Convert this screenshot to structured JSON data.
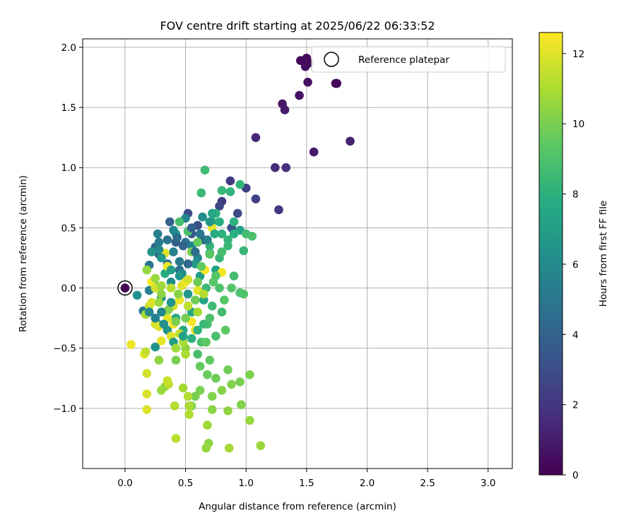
{
  "chart_data": {
    "type": "scatter",
    "title": "FOV centre drift starting at 2025/06/22 06:33:52",
    "xlabel": "Angular distance from reference (arcmin)",
    "ylabel": "Rotation from reference (arcmin)",
    "xlim": [
      -0.35,
      3.2
    ],
    "ylim": [
      -1.5,
      2.07
    ],
    "xticks": [
      0.0,
      0.5,
      1.0,
      1.5,
      2.0,
      2.5,
      3.0
    ],
    "xtick_labels": [
      "0.0",
      "0.5",
      "1.0",
      "1.5",
      "2.0",
      "2.5",
      "3.0"
    ],
    "yticks": [
      -1.0,
      -0.5,
      0.0,
      0.5,
      1.0,
      1.5,
      2.0
    ],
    "ytick_labels": [
      "−1.0",
      "−0.5",
      "0.0",
      "0.5",
      "1.0",
      "1.5",
      "2.0"
    ],
    "grid": true,
    "legend": {
      "position": "top-right",
      "entries": [
        "Reference platepar"
      ]
    },
    "reference_point": {
      "x": 0.0,
      "y": 0.0
    },
    "colorbar": {
      "label": "Hours from first FF file",
      "colormap": "viridis",
      "range": [
        0,
        12.6
      ],
      "ticks": [
        0,
        2,
        4,
        6,
        8,
        10,
        12
      ],
      "tick_labels": [
        "0",
        "2",
        "4",
        "6",
        "8",
        "10",
        "12"
      ]
    },
    "series": [
      {
        "values": [
          [
            0.0,
            0.0,
            0.05
          ],
          [
            1.45,
            1.89,
            0.3
          ],
          [
            1.5,
            1.91,
            0.4
          ],
          [
            1.49,
            1.84,
            0.5
          ],
          [
            1.52,
            1.87,
            0.45
          ],
          [
            1.74,
            1.7,
            0.3
          ],
          [
            1.75,
            1.7,
            0.2
          ],
          [
            1.51,
            1.71,
            0.6
          ],
          [
            1.44,
            1.6,
            0.7
          ],
          [
            1.3,
            1.53,
            0.8
          ],
          [
            1.32,
            1.48,
            0.9
          ],
          [
            1.56,
            1.13,
            1.0
          ],
          [
            1.86,
            1.22,
            1.2
          ],
          [
            1.08,
            1.25,
            1.4
          ],
          [
            1.24,
            1.0,
            1.6
          ],
          [
            1.33,
            1.0,
            1.8
          ],
          [
            1.27,
            0.65,
            2.0
          ],
          [
            0.87,
            0.89,
            2.2
          ],
          [
            1.0,
            0.83,
            2.4
          ],
          [
            1.08,
            0.74,
            2.5
          ],
          [
            0.8,
            0.72,
            2.3
          ],
          [
            0.78,
            0.68,
            2.6
          ],
          [
            0.93,
            0.62,
            2.8
          ],
          [
            0.52,
            0.62,
            3.0
          ],
          [
            0.6,
            0.52,
            3.1
          ],
          [
            0.88,
            0.5,
            3.3
          ],
          [
            0.55,
            0.45,
            3.5
          ],
          [
            0.65,
            0.4,
            3.6
          ],
          [
            0.42,
            0.38,
            3.8
          ],
          [
            0.37,
            0.55,
            4.0
          ],
          [
            0.25,
            0.34,
            4.2
          ],
          [
            0.28,
            0.28,
            4.4
          ],
          [
            0.35,
            0.2,
            4.5
          ],
          [
            0.45,
            0.15,
            4.7
          ],
          [
            0.2,
            0.19,
            4.9
          ],
          [
            0.23,
            0.05,
            5.0
          ],
          [
            0.15,
            -0.19,
            5.2
          ],
          [
            0.2,
            -0.02,
            5.4
          ],
          [
            0.27,
            0.45,
            5.5
          ],
          [
            0.4,
            0.3,
            5.6
          ],
          [
            0.5,
            0.58,
            5.7
          ],
          [
            0.55,
            0.35,
            5.8
          ],
          [
            0.6,
            0.25,
            5.9
          ],
          [
            0.47,
            0.12,
            6.0
          ],
          [
            0.38,
            0.05,
            6.1
          ],
          [
            0.3,
            -0.08,
            6.2
          ],
          [
            0.1,
            -0.06,
            6.3
          ],
          [
            0.27,
            -0.3,
            6.4
          ],
          [
            0.25,
            -0.49,
            6.5
          ],
          [
            0.35,
            -0.35,
            6.6
          ],
          [
            0.45,
            0.1,
            6.7
          ],
          [
            0.52,
            -0.05,
            6.8
          ],
          [
            0.58,
            0.2,
            6.9
          ],
          [
            0.62,
            0.1,
            7.0
          ],
          [
            0.7,
            0.29,
            7.1
          ],
          [
            0.95,
            0.48,
            7.2
          ],
          [
            0.75,
            0.15,
            7.3
          ],
          [
            0.65,
            -0.1,
            7.4
          ],
          [
            0.55,
            -0.2,
            7.5
          ],
          [
            0.42,
            -0.25,
            7.6
          ],
          [
            0.48,
            -0.35,
            7.7
          ],
          [
            0.33,
            0.12,
            7.8
          ],
          [
            0.72,
            0.55,
            7.9
          ],
          [
            0.75,
            0.62,
            8.0
          ],
          [
            0.8,
            0.45,
            8.1
          ],
          [
            0.85,
            0.4,
            8.2
          ],
          [
            0.7,
            0.35,
            8.3
          ],
          [
            0.78,
            0.25,
            8.4
          ],
          [
            0.67,
            0.0,
            8.5
          ],
          [
            0.72,
            -0.15,
            8.6
          ],
          [
            0.8,
            -0.2,
            8.7
          ],
          [
            0.68,
            -0.3,
            8.8
          ],
          [
            0.75,
            -0.4,
            8.9
          ],
          [
            0.63,
            -0.45,
            9.0
          ],
          [
            0.6,
            -0.55,
            8.8
          ],
          [
            0.66,
            0.98,
            8.6
          ],
          [
            0.63,
            0.79,
            8.5
          ],
          [
            0.8,
            0.81,
            8.4
          ],
          [
            0.95,
            0.86,
            8.3
          ],
          [
            0.87,
            0.8,
            8.2
          ],
          [
            0.9,
            0.55,
            8.1
          ],
          [
            0.85,
            0.35,
            8.5
          ],
          [
            0.9,
            0.1,
            8.7
          ],
          [
            0.95,
            -0.04,
            9.0
          ],
          [
            0.98,
            -0.05,
            9.1
          ],
          [
            0.88,
            0.0,
            9.2
          ],
          [
            0.82,
            -0.1,
            9.3
          ],
          [
            0.83,
            -0.35,
            9.4
          ],
          [
            0.7,
            -0.6,
            9.5
          ],
          [
            0.62,
            -0.65,
            9.6
          ],
          [
            0.68,
            -0.72,
            9.7
          ],
          [
            0.75,
            -0.75,
            9.8
          ],
          [
            0.85,
            -0.68,
            9.9
          ],
          [
            0.95,
            -0.78,
            10.0
          ],
          [
            1.03,
            -0.72,
            10.1
          ],
          [
            0.72,
            -0.9,
            10.2
          ],
          [
            0.8,
            -0.85,
            10.3
          ],
          [
            0.88,
            -0.8,
            10.2
          ],
          [
            0.62,
            -0.85,
            10.1
          ],
          [
            0.58,
            -0.9,
            10.0
          ],
          [
            0.55,
            -0.98,
            10.3
          ],
          [
            0.72,
            -1.01,
            10.4
          ],
          [
            0.85,
            -1.02,
            10.5
          ],
          [
            0.96,
            -0.97,
            10.2
          ],
          [
            1.03,
            -1.1,
            10.6
          ],
          [
            1.12,
            -1.31,
            10.7
          ],
          [
            0.68,
            -1.14,
            10.8
          ],
          [
            0.69,
            -1.29,
            10.4
          ],
          [
            0.67,
            -1.33,
            10.6
          ],
          [
            0.86,
            -1.33,
            10.9
          ],
          [
            0.53,
            -0.98,
            11.0
          ],
          [
            0.53,
            -1.05,
            11.1
          ],
          [
            0.41,
            -0.98,
            11.2
          ],
          [
            0.42,
            -1.25,
            11.3
          ],
          [
            0.33,
            -0.82,
            10.5
          ],
          [
            0.3,
            -0.85,
            10.7
          ],
          [
            0.48,
            -0.83,
            10.9
          ],
          [
            0.36,
            -0.8,
            11.4
          ],
          [
            0.35,
            -0.77,
            11.6
          ],
          [
            0.52,
            -0.9,
            11.2
          ],
          [
            0.18,
            -0.71,
            11.8
          ],
          [
            0.18,
            -0.88,
            11.9
          ],
          [
            0.18,
            -1.01,
            12.0
          ],
          [
            0.16,
            -0.55,
            12.1
          ],
          [
            0.05,
            -0.47,
            12.3
          ],
          [
            0.17,
            -0.53,
            11.5
          ],
          [
            0.28,
            -0.6,
            10.5
          ],
          [
            0.42,
            -0.6,
            10.0
          ],
          [
            0.5,
            -0.5,
            10.4
          ],
          [
            0.48,
            -0.45,
            11.0
          ],
          [
            0.45,
            -0.38,
            11.5
          ],
          [
            0.38,
            -0.4,
            12.0
          ],
          [
            0.3,
            -0.44,
            12.2
          ],
          [
            0.4,
            -0.3,
            12.4
          ],
          [
            0.35,
            -0.25,
            12.1
          ],
          [
            0.25,
            -0.3,
            11.8
          ],
          [
            0.28,
            -0.32,
            12.0
          ],
          [
            0.32,
            -0.2,
            11.6
          ],
          [
            0.2,
            -0.15,
            11.5
          ],
          [
            0.17,
            -0.22,
            11.0
          ],
          [
            0.22,
            -0.12,
            12.0
          ],
          [
            0.4,
            -0.15,
            11.9
          ],
          [
            0.45,
            -0.1,
            12.2
          ],
          [
            0.52,
            -0.15,
            11.4
          ],
          [
            0.55,
            -0.28,
            12.5
          ],
          [
            0.6,
            -0.2,
            11.0
          ],
          [
            0.58,
            -0.35,
            12.3
          ],
          [
            0.47,
            0.02,
            12.0
          ],
          [
            0.5,
            0.05,
            12.4
          ],
          [
            0.52,
            0.07,
            11.8
          ],
          [
            0.6,
            -0.02,
            12.1
          ],
          [
            0.65,
            -0.05,
            11.2
          ],
          [
            0.66,
            0.15,
            12.6
          ],
          [
            0.72,
            0.5,
            12.2
          ],
          [
            0.8,
            0.13,
            12.4
          ],
          [
            0.35,
            0.18,
            12.3
          ],
          [
            0.33,
            0.29,
            12.0
          ],
          [
            0.22,
            0.05,
            12.5
          ],
          [
            0.25,
            0.0,
            11.7
          ],
          [
            0.38,
            0.0,
            11.3
          ],
          [
            0.3,
            0.02,
            10.8
          ],
          [
            0.18,
            0.15,
            10.6
          ],
          [
            0.44,
            -0.05,
            10.3
          ],
          [
            0.55,
            0.3,
            10.0
          ],
          [
            0.6,
            0.38,
            9.6
          ],
          [
            0.7,
            0.28,
            9.4
          ],
          [
            0.75,
            0.1,
            9.2
          ],
          [
            0.52,
            0.47,
            9.0
          ],
          [
            0.45,
            0.55,
            8.9
          ],
          [
            0.42,
            0.45,
            7.0
          ],
          [
            0.38,
            0.15,
            7.2
          ],
          [
            0.3,
            0.25,
            6.8
          ],
          [
            0.22,
            0.3,
            6.5
          ],
          [
            0.28,
            0.32,
            6.0
          ],
          [
            0.45,
            0.22,
            5.2
          ],
          [
            0.5,
            0.38,
            4.8
          ],
          [
            0.52,
            0.2,
            4.3
          ],
          [
            0.58,
            0.3,
            4.6
          ],
          [
            0.62,
            0.45,
            5.0
          ],
          [
            0.68,
            0.4,
            5.5
          ],
          [
            0.55,
            0.5,
            3.9
          ],
          [
            0.48,
            0.35,
            4.1
          ],
          [
            0.43,
            0.42,
            4.4
          ],
          [
            0.35,
            0.4,
            4.9
          ],
          [
            0.28,
            0.38,
            5.3
          ],
          [
            0.4,
            0.48,
            5.8
          ],
          [
            0.64,
            0.59,
            6.2
          ],
          [
            0.7,
            0.55,
            6.6
          ],
          [
            0.72,
            0.62,
            7.5
          ],
          [
            0.74,
            0.45,
            7.7
          ],
          [
            0.78,
            0.55,
            7.9
          ],
          [
            0.9,
            0.45,
            8.0
          ],
          [
            0.98,
            0.31,
            8.4
          ],
          [
            1.0,
            0.45,
            8.7
          ],
          [
            1.05,
            0.43,
            8.9
          ],
          [
            0.8,
            0.3,
            8.8
          ],
          [
            0.78,
            0.0,
            9.0
          ],
          [
            0.73,
            0.05,
            9.3
          ],
          [
            0.63,
            0.18,
            9.5
          ],
          [
            0.6,
            0.05,
            9.8
          ],
          [
            0.58,
            -0.1,
            9.9
          ],
          [
            0.5,
            -0.25,
            10.0
          ],
          [
            0.42,
            -0.28,
            10.1
          ],
          [
            0.36,
            -0.18,
            10.2
          ],
          [
            0.3,
            -0.05,
            10.4
          ],
          [
            0.25,
            0.08,
            10.6
          ],
          [
            0.28,
            -0.12,
            10.7
          ],
          [
            0.38,
            -0.12,
            6.5
          ],
          [
            0.3,
            -0.2,
            5.8
          ],
          [
            0.25,
            -0.25,
            5.5
          ],
          [
            0.2,
            -0.2,
            5.9
          ],
          [
            0.32,
            -0.3,
            6.3
          ],
          [
            0.4,
            -0.45,
            7.0
          ],
          [
            0.48,
            -0.4,
            7.2
          ],
          [
            0.55,
            -0.42,
            8.0
          ],
          [
            0.6,
            -0.35,
            8.2
          ],
          [
            0.65,
            -0.3,
            8.5
          ],
          [
            0.7,
            -0.25,
            9.0
          ],
          [
            0.67,
            -0.45,
            9.4
          ],
          [
            0.5,
            -0.55,
            11.0
          ],
          [
            0.42,
            -0.5,
            10.8
          ]
        ]
      }
    ]
  }
}
